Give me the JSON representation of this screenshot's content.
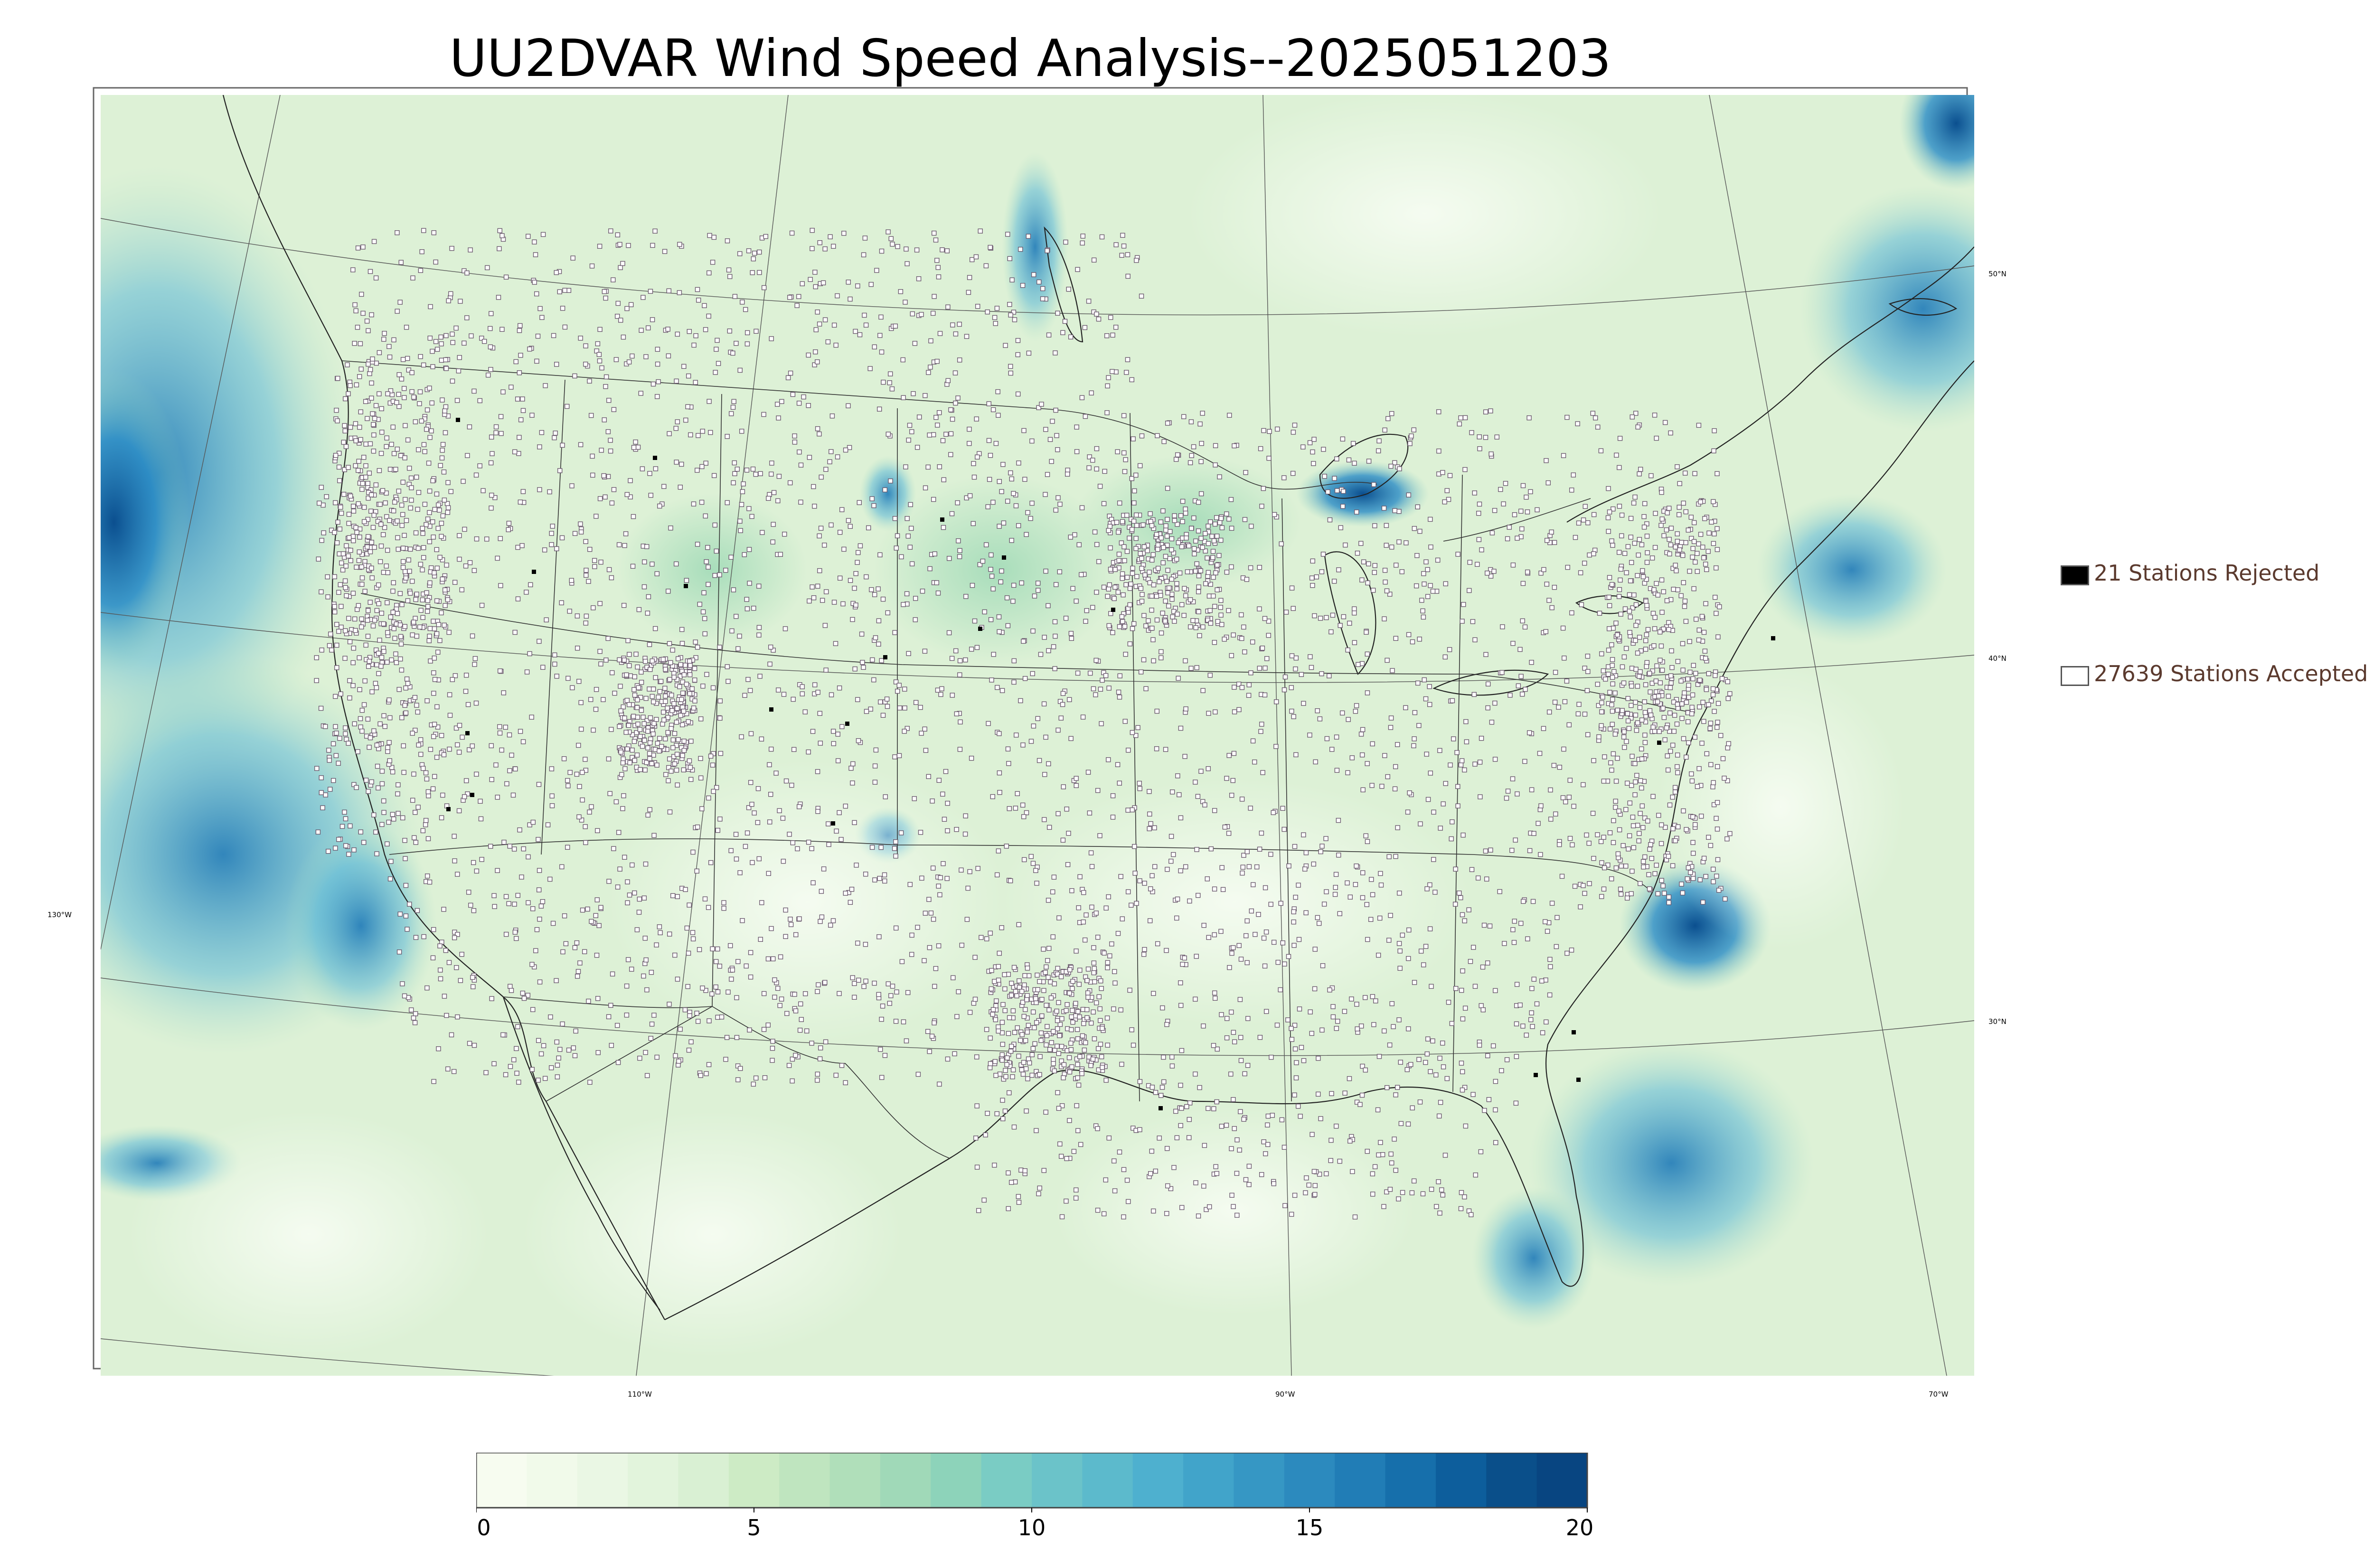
{
  "title": "UU2DVAR Wind Speed Analysis--2025051203",
  "legend": {
    "rejected": {
      "label": "21 Stations Rejected",
      "color": "#000000"
    },
    "accepted": {
      "label": "27639 Stations Accepted",
      "color": "#ffffff"
    }
  },
  "graticule": {
    "lat_labels": [
      "50°N",
      "40°N",
      "30°N"
    ],
    "lon_labels": [
      "130°W",
      "110°W",
      "90°W",
      "70°W"
    ]
  },
  "colorbar": {
    "min": 0,
    "max": 20,
    "ticks": [
      "0",
      "5",
      "10",
      "15",
      "20"
    ],
    "colors": [
      "#f7fcf0",
      "#f1faea",
      "#eaf7e4",
      "#e2f4dc",
      "#d9f0d3",
      "#cdebc5",
      "#bfe5bf",
      "#b0dfba",
      "#a0d9b8",
      "#8dd3ba",
      "#7accc4",
      "#6bc3c9",
      "#5cbacc",
      "#4eb0cf",
      "#41a4ca",
      "#3697c4",
      "#2c8abe",
      "#217db6",
      "#166fab",
      "#0d5e9c",
      "#0a4f8a",
      "#084581"
    ]
  },
  "map_colors": {
    "land": "#e6f5df",
    "ocean": "#cfeccc",
    "strong_wind": "#2f8fc4",
    "very_strong_wind": "#0d5e9c"
  }
}
